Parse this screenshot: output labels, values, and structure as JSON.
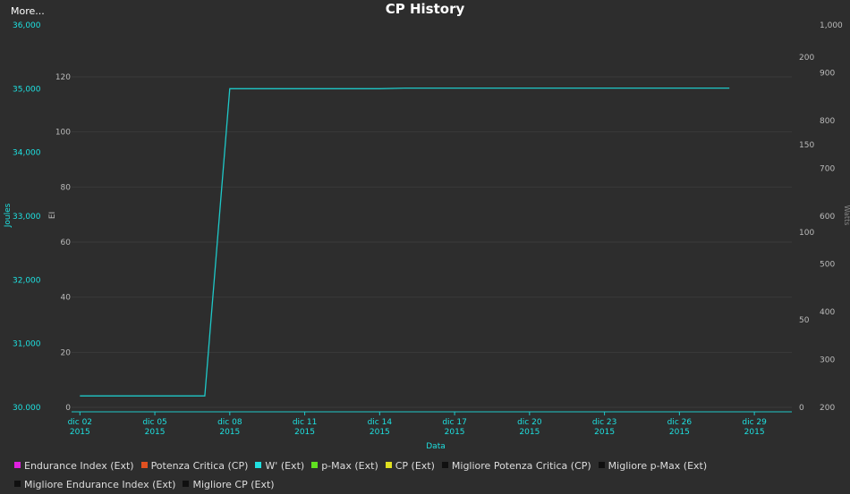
{
  "header": {
    "more_label": "More..."
  },
  "chart_data": {
    "type": "line",
    "title": "CP History",
    "xlabel": "Data",
    "x_ticks": [
      {
        "date": "2015-12-02",
        "line1": "dic 02",
        "line2": "2015"
      },
      {
        "date": "2015-12-05",
        "line1": "dic 05",
        "line2": "2015"
      },
      {
        "date": "2015-12-08",
        "line1": "dic 08",
        "line2": "2015"
      },
      {
        "date": "2015-12-11",
        "line1": "dic 11",
        "line2": "2015"
      },
      {
        "date": "2015-12-14",
        "line1": "dic 14",
        "line2": "2015"
      },
      {
        "date": "2015-12-17",
        "line1": "dic 17",
        "line2": "2015"
      },
      {
        "date": "2015-12-20",
        "line1": "dic 20",
        "line2": "2015"
      },
      {
        "date": "2015-12-23",
        "line1": "dic 23",
        "line2": "2015"
      },
      {
        "date": "2015-12-26",
        "line1": "dic 26",
        "line2": "2015"
      },
      {
        "date": "2015-12-29",
        "line1": "dic 29",
        "line2": "2015"
      }
    ],
    "x_range": [
      "2015-12-01T16:00",
      "2015-12-30T12:00"
    ],
    "axes": {
      "joules": {
        "label": "Joules",
        "range": [
          30000,
          36000
        ],
        "ticks": [
          "30.000",
          "31,000",
          "32,000",
          "33,000",
          "34,000",
          "35,000",
          "36,000"
        ],
        "color": "#1ee0e0"
      },
      "ei": {
        "label": "EI",
        "range": [
          0,
          120
        ],
        "ticks": [
          "0",
          "20",
          "40",
          "60",
          "80",
          "100",
          "120"
        ],
        "color": "#bbbbbb"
      },
      "right_inner": {
        "range": [
          0,
          200
        ],
        "ticks": [
          "0",
          "50",
          "100",
          "150",
          "200"
        ],
        "color": "#bbbbbb"
      },
      "watts": {
        "label": "Watts",
        "range": [
          200,
          1000
        ],
        "ticks": [
          "200",
          "300",
          "400",
          "500",
          "600",
          "700",
          "800",
          "900",
          "1,000"
        ],
        "color": "#bbbbbb"
      }
    },
    "series": [
      {
        "name": "W' (Ext)",
        "axis": "joules",
        "color": "#1ec8c8",
        "points": [
          {
            "x": "2015-12-02",
            "y": 30180
          },
          {
            "x": "2015-12-07",
            "y": 30180
          },
          {
            "x": "2015-12-08",
            "y": 35000
          },
          {
            "x": "2015-12-14",
            "y": 35000
          },
          {
            "x": "2015-12-15",
            "y": 35010
          },
          {
            "x": "2015-12-28",
            "y": 35010
          }
        ]
      }
    ],
    "legend": [
      {
        "label": "Endurance Index (Ext)",
        "color": "#e020e0"
      },
      {
        "label": "Potenza Critica (CP)",
        "color": "#e05020"
      },
      {
        "label": "W' (Ext)",
        "color": "#20e0e0"
      },
      {
        "label": "p-Max (Ext)",
        "color": "#60e020"
      },
      {
        "label": "CP (Ext)",
        "color": "#e0e020"
      },
      {
        "label": "Migliore Potenza Critica (CP)",
        "color": "#101010"
      },
      {
        "label": "Migliore p-Max (Ext)",
        "color": "#101010"
      },
      {
        "label": "Migliore Endurance Index (Ext)",
        "color": "#101010"
      },
      {
        "label": "Migliore CP (Ext)",
        "color": "#101010"
      }
    ],
    "legend_placement": "bottom",
    "grid": true
  }
}
